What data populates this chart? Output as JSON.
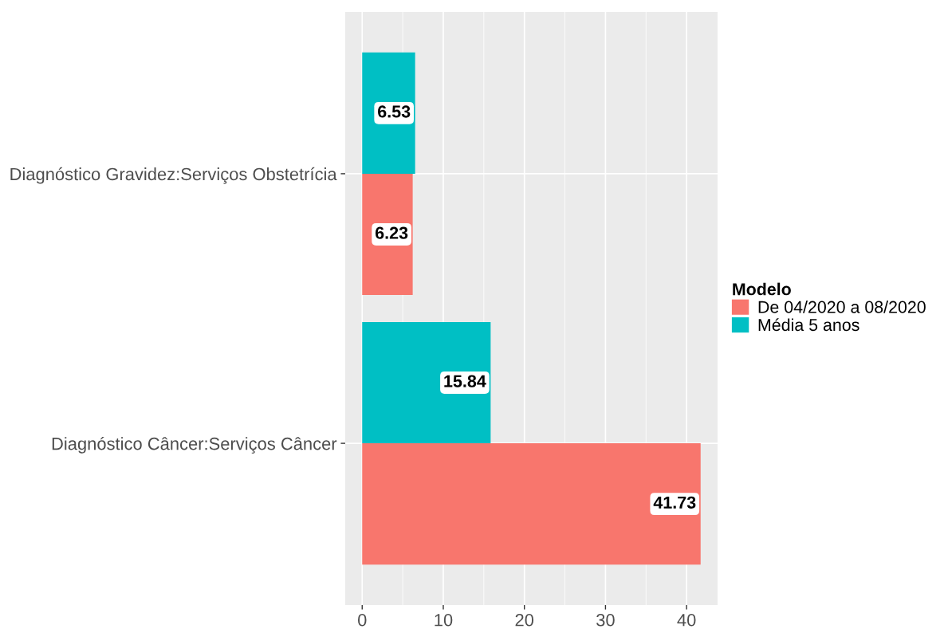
{
  "chart_data": {
    "type": "bar",
    "orientation": "horizontal",
    "categories": [
      "Diagnóstico Gravidez:Serviços Obstetrícia",
      "Diagnóstico Câncer:Serviços Câncer"
    ],
    "series": [
      {
        "name": "De 04/2020 a 08/2020",
        "color": "#f8766d",
        "values": [
          6.23,
          41.73
        ]
      },
      {
        "name": "Média 5 anos",
        "color": "#00bfc4",
        "values": [
          6.53,
          15.84
        ]
      }
    ],
    "xlim": [
      -2.09,
      43.82
    ],
    "xticks": [
      0,
      10,
      20,
      30,
      40
    ],
    "legend_title": "Modelo",
    "legend": "right",
    "grid": true,
    "data_labels": true
  }
}
